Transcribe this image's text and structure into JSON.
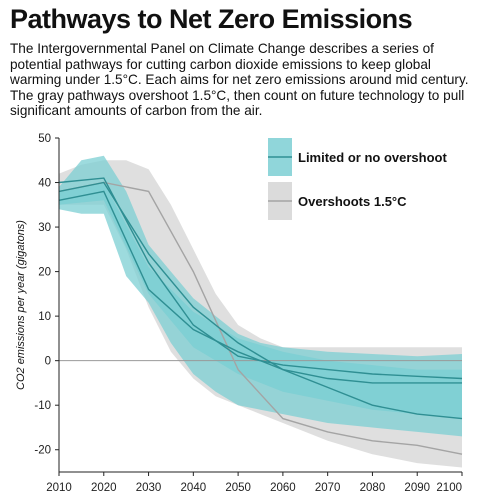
{
  "title": "Pathways to Net Zero Emissions",
  "subtitle": "The Intergovernmental Panel on Climate Change describes a series of potential pathways for cutting carbon dioxide emissions to keep global warming under 1.5°C. Each aims for net zero emissions around mid century. The gray pathways overshoot 1.5°C, then count on future technology to pull significant amounts of carbon from the air.",
  "chart_data": {
    "type": "area",
    "title": "Pathways to Net Zero Emissions",
    "xlabel": "",
    "ylabel": "CO2 emissions per year (gigatons)",
    "xlim": [
      2010,
      2100
    ],
    "ylim": [
      -25,
      50
    ],
    "x_ticks": [
      2010,
      2020,
      2030,
      2040,
      2050,
      2060,
      2070,
      2080,
      2090,
      2100
    ],
    "y_ticks": [
      -20,
      -10,
      0,
      10,
      20,
      30,
      40,
      50
    ],
    "grid": false,
    "legend_position": "top-right",
    "colors": {
      "limited_band": "#7ccfd3",
      "limited_line": "#2f8f93",
      "overshoot_band": "#d7d7d7",
      "overshoot_line": "#a4a4a4",
      "zero_line": "#999999"
    },
    "series": [
      {
        "name": "Limited or no overshoot",
        "band_outer": {
          "x": [
            2010,
            2015,
            2020,
            2025,
            2030,
            2035,
            2040,
            2045,
            2050,
            2055,
            2060,
            2070,
            2080,
            2090,
            2100
          ],
          "upper": [
            39,
            45,
            46,
            38,
            26,
            20,
            14,
            10,
            6,
            4,
            3,
            2,
            1.5,
            1,
            1.5
          ],
          "lower": [
            34,
            33,
            33,
            19,
            13,
            4,
            -3,
            -7,
            -10,
            -11,
            -12,
            -14,
            -15,
            -16,
            -17
          ]
        },
        "band_inner": {
          "x": [
            2010,
            2020,
            2030,
            2040,
            2050,
            2060,
            2070,
            2080,
            2090,
            2100
          ],
          "upper": [
            38,
            40,
            21,
            11,
            5,
            2,
            0,
            -1,
            -2,
            -2
          ],
          "lower": [
            35,
            36,
            15,
            3,
            -3,
            -7,
            -9,
            -11,
            -12,
            -13
          ]
        },
        "lines": [
          {
            "x": [
              2010,
              2020,
              2030,
              2040,
              2050,
              2060,
              2070,
              2080,
              2090,
              2100
            ],
            "y": [
              40,
              41,
              22,
              8,
              1,
              -1,
              -2,
              -3,
              -3.5,
              -4
            ]
          },
          {
            "x": [
              2010,
              2020,
              2030,
              2040,
              2050,
              2060,
              2070,
              2080,
              2090,
              2100
            ],
            "y": [
              36,
              38,
              16,
              7,
              2,
              -2,
              -4,
              -5,
              -5,
              -5
            ]
          },
          {
            "x": [
              2010,
              2020,
              2030,
              2040,
              2050,
              2060,
              2070,
              2080,
              2090,
              2100
            ],
            "y": [
              38,
              40,
              24,
              12,
              4,
              -2,
              -6,
              -10,
              -12,
              -13
            ]
          }
        ]
      },
      {
        "name": "Overshoots 1.5°C",
        "band": {
          "x": [
            2010,
            2015,
            2020,
            2025,
            2030,
            2035,
            2040,
            2045,
            2050,
            2055,
            2060,
            2070,
            2080,
            2090,
            2100
          ],
          "upper": [
            42,
            44,
            45,
            45,
            43,
            35,
            25,
            15,
            8,
            5,
            3,
            3,
            3,
            3,
            3
          ],
          "lower": [
            35,
            35,
            35,
            25,
            12,
            2,
            -4,
            -8,
            -10,
            -12,
            -14,
            -18,
            -21,
            -23,
            -24
          ]
        },
        "lines": [
          {
            "x": [
              2010,
              2020,
              2030,
              2040,
              2050,
              2060,
              2070,
              2080,
              2090,
              2100
            ],
            "y": [
              38,
              40,
              38,
              20,
              -2,
              -13,
              -16,
              -18,
              -19,
              -21
            ]
          }
        ]
      }
    ]
  }
}
